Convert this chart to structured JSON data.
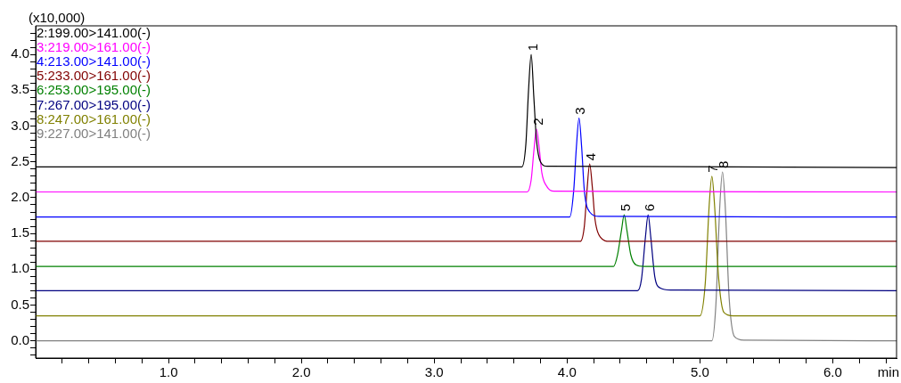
{
  "chart_data": {
    "type": "line",
    "xlabel": "min",
    "ylabel": "(x10,000)",
    "legend": "top left",
    "grid": false,
    "marker": "none",
    "line_style": "solid",
    "xlim": [
      0,
      6.48
    ],
    "xticks": [
      {
        "value": 0.2,
        "label": null
      },
      {
        "value": 0.4,
        "label": null
      },
      {
        "value": 0.6,
        "label": null
      },
      {
        "value": 0.8,
        "label": null
      },
      {
        "value": 1.0,
        "label": "1.0"
      },
      {
        "value": 1.2,
        "label": null
      },
      {
        "value": 1.4,
        "label": null
      },
      {
        "value": 1.6,
        "label": null
      },
      {
        "value": 1.8,
        "label": null
      },
      {
        "value": 2.0,
        "label": "2.0"
      },
      {
        "value": 2.2,
        "label": null
      },
      {
        "value": 2.4,
        "label": null
      },
      {
        "value": 2.6,
        "label": null
      },
      {
        "value": 2.8,
        "label": null
      },
      {
        "value": 3.0,
        "label": "3.0"
      },
      {
        "value": 3.2,
        "label": null
      },
      {
        "value": 3.4,
        "label": null
      },
      {
        "value": 3.6,
        "label": null
      },
      {
        "value": 3.8,
        "label": null
      },
      {
        "value": 4.0,
        "label": "4.0"
      },
      {
        "value": 4.2,
        "label": null
      },
      {
        "value": 4.4,
        "label": null
      },
      {
        "value": 4.6,
        "label": null
      },
      {
        "value": 4.8,
        "label": null
      },
      {
        "value": 5.0,
        "label": "5.0"
      },
      {
        "value": 5.2,
        "label": null
      },
      {
        "value": 5.4,
        "label": null
      },
      {
        "value": 5.6,
        "label": null
      },
      {
        "value": 5.8,
        "label": null
      },
      {
        "value": 6.0,
        "label": "6.0"
      },
      {
        "value": 6.2,
        "label": null
      },
      {
        "value": 6.4,
        "label": null
      }
    ],
    "ylim": [
      -0.24,
      4.4
    ],
    "yticks": [
      {
        "value": -0.2,
        "label": null
      },
      {
        "value": -0.1,
        "label": null
      },
      {
        "value": 0,
        "label": "0.0"
      },
      {
        "value": 0.1,
        "label": null
      },
      {
        "value": 0.2,
        "label": null
      },
      {
        "value": 0.3,
        "label": null
      },
      {
        "value": 0.4,
        "label": null
      },
      {
        "value": 0.5,
        "label": "0.5"
      },
      {
        "value": 0.6,
        "label": null
      },
      {
        "value": 0.7,
        "label": null
      },
      {
        "value": 0.8,
        "label": null
      },
      {
        "value": 0.9,
        "label": null
      },
      {
        "value": 1.0,
        "label": "1.0"
      },
      {
        "value": 1.1,
        "label": null
      },
      {
        "value": 1.2,
        "label": null
      },
      {
        "value": 1.3,
        "label": null
      },
      {
        "value": 1.4,
        "label": null
      },
      {
        "value": 1.5,
        "label": "1.5"
      },
      {
        "value": 1.6,
        "label": null
      },
      {
        "value": 1.7,
        "label": null
      },
      {
        "value": 1.8,
        "label": null
      },
      {
        "value": 1.9,
        "label": null
      },
      {
        "value": 2.0,
        "label": "2.0"
      },
      {
        "value": 2.1,
        "label": null
      },
      {
        "value": 2.2,
        "label": null
      },
      {
        "value": 2.3,
        "label": null
      },
      {
        "value": 2.4,
        "label": null
      },
      {
        "value": 2.5,
        "label": "2.5"
      },
      {
        "value": 2.6,
        "label": null
      },
      {
        "value": 2.7,
        "label": null
      },
      {
        "value": 2.8,
        "label": null
      },
      {
        "value": 2.9,
        "label": null
      },
      {
        "value": 3.0,
        "label": "3.0"
      },
      {
        "value": 3.1,
        "label": null
      },
      {
        "value": 3.2,
        "label": null
      },
      {
        "value": 3.3,
        "label": null
      },
      {
        "value": 3.4,
        "label": null
      },
      {
        "value": 3.5,
        "label": "3.5"
      },
      {
        "value": 3.6,
        "label": null
      },
      {
        "value": 3.7,
        "label": null
      },
      {
        "value": 3.8,
        "label": null
      },
      {
        "value": 3.9,
        "label": null
      },
      {
        "value": 4.0,
        "label": "4.0"
      },
      {
        "value": 4.1,
        "label": null
      },
      {
        "value": 4.2,
        "label": null
      },
      {
        "value": 4.3,
        "label": null
      }
    ],
    "series": [
      {
        "name": "2:199.00>141.00(-)",
        "color": "#000000",
        "x": [
          0,
          3.66,
          3.69,
          3.71,
          3.73,
          3.75,
          3.77,
          3.8,
          3.85,
          6.48
        ],
        "values": [
          2.43,
          2.43,
          2.75,
          3.5,
          4.0,
          3.4,
          2.8,
          2.5,
          2.44,
          2.42
        ]
      },
      {
        "name": "3:219.00>161.00(-)",
        "color": "#ff00ff",
        "x": [
          0,
          3.7,
          3.73,
          3.75,
          3.77,
          3.79,
          3.81,
          3.85,
          3.9,
          6.48
        ],
        "values": [
          2.08,
          2.08,
          2.25,
          2.65,
          2.96,
          2.7,
          2.35,
          2.15,
          2.09,
          2.08
        ]
      },
      {
        "name": "4:213.00>141.00(-)",
        "color": "#0000ff",
        "x": [
          0,
          4.02,
          4.05,
          4.07,
          4.09,
          4.11,
          4.13,
          4.17,
          4.24,
          6.48
        ],
        "values": [
          1.73,
          1.73,
          2.1,
          2.7,
          3.11,
          2.7,
          2.1,
          1.8,
          1.74,
          1.73
        ]
      },
      {
        "name": "5:233.00>161.00(-)",
        "color": "#800000",
        "x": [
          0,
          4.1,
          4.13,
          4.15,
          4.17,
          4.19,
          4.21,
          4.25,
          4.32,
          6.48
        ],
        "values": [
          1.39,
          1.39,
          1.6,
          2.1,
          2.47,
          2.15,
          1.7,
          1.45,
          1.39,
          1.39
        ]
      },
      {
        "name": "6:253.00>195.00(-)",
        "color": "#008000",
        "x": [
          0,
          4.35,
          4.38,
          4.41,
          4.43,
          4.45,
          4.48,
          4.52,
          4.58,
          6.48
        ],
        "values": [
          1.04,
          1.04,
          1.2,
          1.55,
          1.76,
          1.55,
          1.2,
          1.06,
          1.04,
          1.04
        ]
      },
      {
        "name": "7:267.00>195.00(-)",
        "color": "#000080",
        "x": [
          0,
          4.53,
          4.56,
          4.59,
          4.61,
          4.63,
          4.66,
          4.7,
          4.78,
          6.48
        ],
        "values": [
          0.7,
          0.7,
          0.86,
          1.45,
          1.76,
          1.45,
          0.9,
          0.74,
          0.71,
          0.7
        ]
      },
      {
        "name": "8:247.00>161.00(-)",
        "color": "#808000",
        "x": [
          0,
          5.0,
          5.04,
          5.07,
          5.09,
          5.11,
          5.14,
          5.18,
          5.25,
          6.48
        ],
        "values": [
          0.35,
          0.35,
          0.8,
          1.9,
          2.3,
          1.9,
          0.9,
          0.4,
          0.35,
          0.35
        ]
      },
      {
        "name": "9:227.00>141.00(-)",
        "color": "#808080",
        "x": [
          0,
          5.09,
          5.12,
          5.15,
          5.17,
          5.19,
          5.22,
          5.26,
          5.33,
          6.48
        ],
        "values": [
          0,
          0,
          0.5,
          1.9,
          2.36,
          1.9,
          0.6,
          0.06,
          0.01,
          0
        ]
      }
    ],
    "annotations": [
      {
        "text": "1",
        "x": 3.73,
        "y": 4.0
      },
      {
        "text": "2",
        "x": 3.77,
        "y": 2.96
      },
      {
        "text": "3",
        "x": 4.09,
        "y": 3.11
      },
      {
        "text": "4",
        "x": 4.17,
        "y": 2.47
      },
      {
        "text": "5",
        "x": 4.43,
        "y": 1.76
      },
      {
        "text": "6",
        "x": 4.61,
        "y": 1.76
      },
      {
        "text": "7",
        "x": 5.09,
        "y": 2.3
      },
      {
        "text": "8",
        "x": 5.17,
        "y": 2.36
      }
    ]
  }
}
